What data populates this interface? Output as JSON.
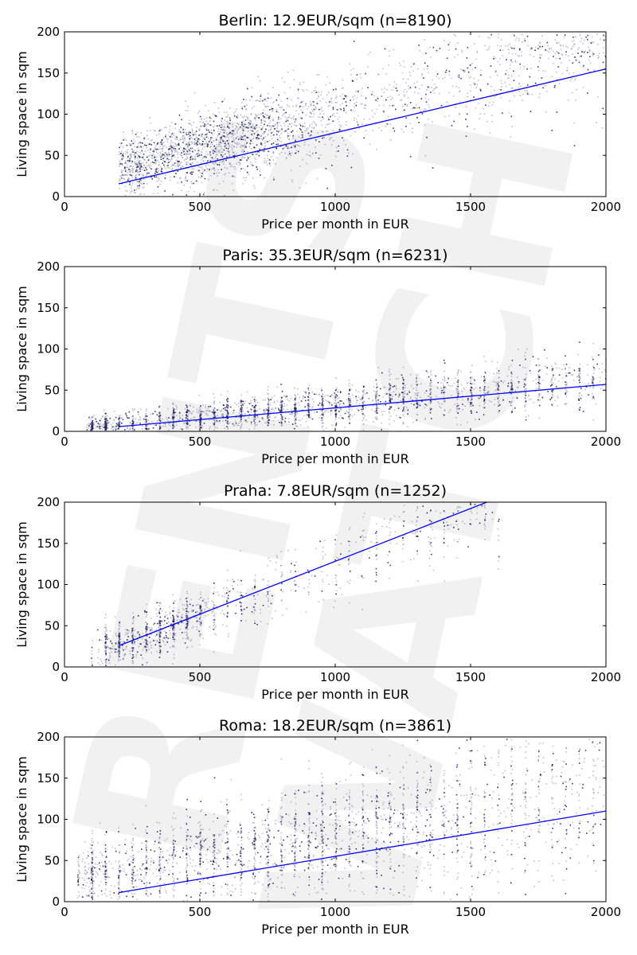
{
  "watermark": [
    "RENTS",
    "WATCH"
  ],
  "chart_data": [
    {
      "type": "scatter",
      "title": "Berlin: 12.9EUR/sqm (n=8190)",
      "xlabel": "Price per month in EUR",
      "ylabel": "Living space in sqm",
      "xlim": [
        0,
        2000
      ],
      "ylim": [
        0,
        200
      ],
      "xticks": [
        0,
        500,
        1000,
        1500,
        2000
      ],
      "yticks": [
        0,
        50,
        100,
        150,
        200
      ],
      "n": 8190,
      "fit_line": {
        "x": [
          200,
          2000
        ],
        "y": [
          15.5,
          155
        ]
      },
      "point_cloud": {
        "x_min": 200,
        "x_max": 2000,
        "slope": 0.085,
        "intercept": 18,
        "spread": 28,
        "dense_center_x": 550,
        "dense_center_y": 60
      },
      "point_color": "#1a1a5e",
      "line_color": "#0000ff"
    },
    {
      "type": "scatter",
      "title": "Paris: 35.3EUR/sqm (n=6231)",
      "xlabel": "Price per month in EUR",
      "ylabel": "Living space in sqm",
      "xlim": [
        0,
        2000
      ],
      "ylim": [
        0,
        200
      ],
      "xticks": [
        0,
        500,
        1000,
        1500,
        2000
      ],
      "yticks": [
        0,
        50,
        100,
        150,
        200
      ],
      "n": 6231,
      "fit_line": {
        "x": [
          200,
          2000
        ],
        "y": [
          5.7,
          57
        ]
      },
      "point_cloud": {
        "x_min": 80,
        "x_max": 2000,
        "slope": 0.03,
        "intercept": 3,
        "spread": 12,
        "dense_center_x": 850,
        "dense_center_y": 28
      },
      "point_color": "#1a1a5e",
      "line_color": "#0000ff"
    },
    {
      "type": "scatter",
      "title": "Praha: 7.8EUR/sqm (n=1252)",
      "xlabel": "Price per month in EUR",
      "ylabel": "Living space in sqm",
      "xlim": [
        0,
        2000
      ],
      "ylim": [
        0,
        200
      ],
      "xticks": [
        0,
        500,
        1000,
        1500,
        2000
      ],
      "yticks": [
        0,
        50,
        100,
        150,
        200
      ],
      "n": 1252,
      "fit_line": {
        "x": [
          200,
          1560
        ],
        "y": [
          25.6,
          200
        ]
      },
      "point_cloud": {
        "x_min": 120,
        "x_max": 1600,
        "slope": 0.12,
        "intercept": 5,
        "spread": 22,
        "dense_center_x": 330,
        "dense_center_y": 42
      },
      "point_color": "#1a1a5e",
      "line_color": "#0000ff"
    },
    {
      "type": "scatter",
      "title": "Roma: 18.2EUR/sqm (n=3861)",
      "xlabel": "Price per month in EUR",
      "ylabel": "Living space in sqm",
      "xlim": [
        0,
        2000
      ],
      "ylim": [
        0,
        200
      ],
      "xticks": [
        0,
        500,
        1000,
        1500,
        2000
      ],
      "yticks": [
        0,
        50,
        100,
        150,
        200
      ],
      "n": 3861,
      "fit_line": {
        "x": [
          200,
          2000
        ],
        "y": [
          11,
          110
        ]
      },
      "point_cloud": {
        "x_min": 60,
        "x_max": 2000,
        "slope": 0.05,
        "intercept": 30,
        "spread": 35,
        "dense_center_x": 800,
        "dense_center_y": 60
      },
      "point_color": "#1a1a5e",
      "line_color": "#0000ff"
    }
  ]
}
